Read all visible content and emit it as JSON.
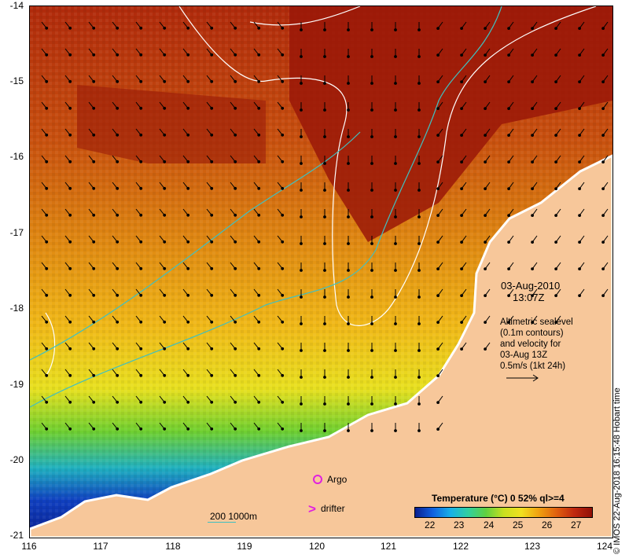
{
  "map": {
    "y_ticks": [
      "-14",
      "-15",
      "-16",
      "-17",
      "-18",
      "-19",
      "-20",
      "-21"
    ],
    "x_ticks": [
      "116",
      "117",
      "118",
      "119",
      "120",
      "121",
      "122",
      "123",
      "124"
    ],
    "colors": {
      "land": "#f7c79a",
      "warm": "#a01c0a",
      "cold": "#0a1f8f",
      "contour": "#ffffff",
      "isobath": "#40c0c0",
      "markers": "#e020e0"
    }
  },
  "annotation": {
    "date": "03-Aug-2010",
    "time": "13:07Z",
    "note_lines": [
      "Altimetric sealevel",
      "(0.1m contours)",
      "and velocity for",
      "03-Aug 13Z",
      "0.5m/s (1kt 24h)"
    ]
  },
  "legend": {
    "title": "Temperature (°C) 0 52% ql>=4",
    "labels": [
      "22",
      "23",
      "24",
      "25",
      "26",
      "27"
    ]
  },
  "markers": {
    "argo_label": "Argo",
    "drifter_label": "drifter"
  },
  "scale_label": "200  1000m",
  "credit": "© IMOS 22-Aug-2018 16:15:48 Hobart time"
}
